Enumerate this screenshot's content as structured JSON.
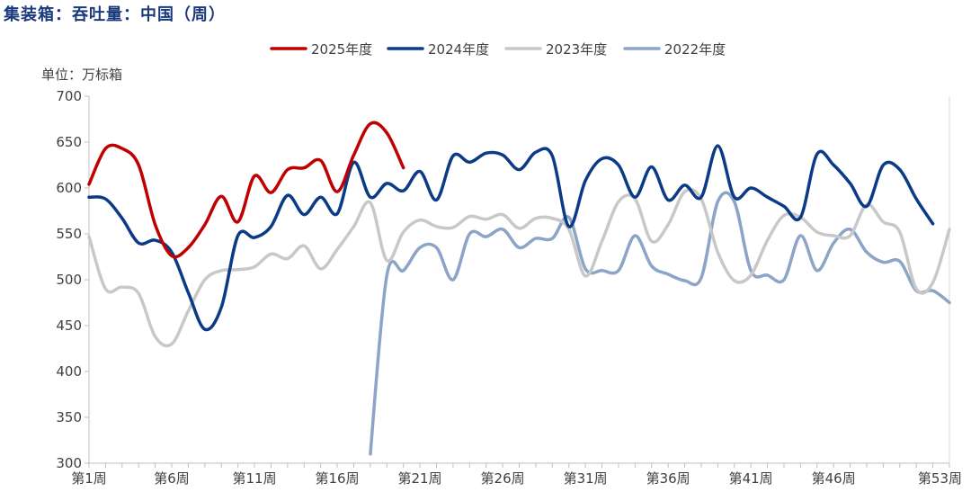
{
  "title": "集装箱：吞吐量：中国（周）",
  "chart_data": {
    "type": "line",
    "unit_label": "单位：万标箱",
    "ylim": [
      300,
      700
    ],
    "y_ticks": [
      300,
      350,
      400,
      450,
      500,
      550,
      600,
      650,
      700
    ],
    "x_range": [
      1,
      53
    ],
    "x_ticks": [
      {
        "week": 1,
        "label": "第1周"
      },
      {
        "week": 6,
        "label": "第6周"
      },
      {
        "week": 11,
        "label": "第11周"
      },
      {
        "week": 16,
        "label": "第16周"
      },
      {
        "week": 21,
        "label": "第21周"
      },
      {
        "week": 26,
        "label": "第26周"
      },
      {
        "week": 31,
        "label": "第31周"
      },
      {
        "week": 36,
        "label": "第36周"
      },
      {
        "week": 41,
        "label": "第41周"
      },
      {
        "week": 46,
        "label": "第46周"
      },
      {
        "week": 53,
        "label": "第53周"
      }
    ],
    "grid": false,
    "legend_position": "top",
    "series": [
      {
        "name": "2025年度",
        "color": "#c00000",
        "start_week": 1,
        "values": [
          604,
          643,
          643,
          625,
          560,
          526,
          535,
          560,
          591,
          563,
          613,
          595,
          620,
          622,
          630,
          596,
          636,
          670,
          660,
          622
        ]
      },
      {
        "name": "2024年度",
        "color": "#0b3a86",
        "start_week": 1,
        "values": [
          590,
          588,
          567,
          540,
          543,
          530,
          486,
          446,
          470,
          548,
          546,
          558,
          592,
          571,
          590,
          572,
          628,
          590,
          605,
          597,
          618,
          587,
          635,
          628,
          638,
          636,
          620,
          639,
          635,
          558,
          608,
          632,
          625,
          590,
          623,
          587,
          603,
          590,
          646,
          590,
          600,
          590,
          580,
          568,
          637,
          625,
          605,
          580,
          625,
          620,
          588,
          561
        ]
      },
      {
        "name": "2023年度",
        "color": "#c8c8c8",
        "start_week": 1,
        "values": [
          547,
          490,
          492,
          485,
          438,
          430,
          466,
          500,
          510,
          511,
          514,
          528,
          523,
          537,
          512,
          533,
          558,
          584,
          521,
          552,
          565,
          558,
          557,
          569,
          566,
          571,
          556,
          567,
          567,
          555,
          504,
          542,
          585,
          588,
          542,
          560,
          596,
          588,
          530,
          499,
          505,
          543,
          570,
          568,
          552,
          548,
          548,
          582,
          563,
          552,
          490,
          497,
          555
        ]
      },
      {
        "name": "2022年度",
        "color": "#8ca4c8",
        "start_week": 1,
        "values": [
          null,
          null,
          null,
          null,
          null,
          null,
          null,
          null,
          null,
          null,
          null,
          null,
          null,
          null,
          null,
          null,
          null,
          310,
          505,
          510,
          535,
          535,
          500,
          550,
          547,
          555,
          535,
          545,
          545,
          568,
          512,
          510,
          510,
          548,
          515,
          506,
          499,
          502,
          585,
          585,
          510,
          505,
          500,
          548,
          510,
          540,
          555,
          530,
          519,
          520,
          488,
          488,
          475
        ]
      }
    ]
  }
}
